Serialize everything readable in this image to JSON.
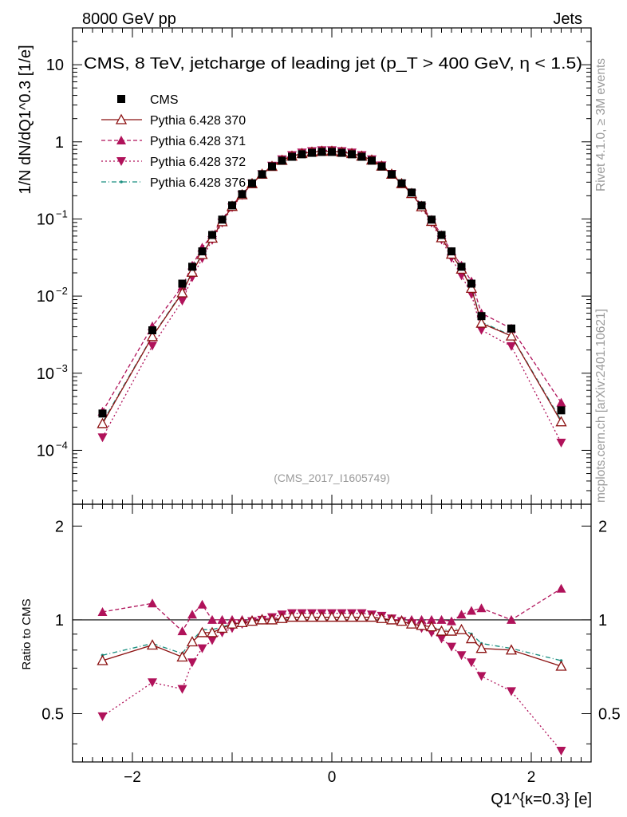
{
  "header": {
    "left": "8000 GeV pp",
    "right": "Jets"
  },
  "side_labels": {
    "rivet": "Rivet 4.1.0, ≥ 3M events",
    "mcplots": "mcplots.cern.ch [arXiv:2401.10621]"
  },
  "analysis_id": "(CMS_2017_I1605749)",
  "colors": {
    "data": "#000000",
    "p370": "#8b1010",
    "p371": "#b0125a",
    "p372": "#b0125a",
    "p376": "#1a8f80"
  },
  "chart_data": {
    "type": "line",
    "title": "CMS, 8 TeV, jetcharge of leading jet (p_T > 400 GeV, η < 1.5)",
    "xlabel": "Q1^{κ=0.3} [e]",
    "ylabel": "1/N dN/dQ1^0.3 [1/e]",
    "ratio_ylabel": "Ratio to CMS",
    "xlim": [
      -2.6,
      2.6
    ],
    "ylim": [
      2e-05,
      30
    ],
    "yscale": "log",
    "ratio_ylim": [
      0.35,
      2.35
    ],
    "x_ticks": [
      "−2",
      "0",
      "2"
    ],
    "y_ticks": [
      "10^-4",
      "10^-3",
      "10^-2",
      "10^-1",
      "1",
      "10"
    ],
    "ratio_ticks": [
      "0.5",
      "1",
      "2"
    ],
    "x": [
      -2.3,
      -1.8,
      -1.5,
      -1.4,
      -1.3,
      -1.2,
      -1.1,
      -1.0,
      -0.9,
      -0.8,
      -0.7,
      -0.6,
      -0.5,
      -0.4,
      -0.3,
      -0.2,
      -0.1,
      0.0,
      0.1,
      0.2,
      0.3,
      0.4,
      0.5,
      0.6,
      0.7,
      0.8,
      0.9,
      1.0,
      1.1,
      1.2,
      1.3,
      1.4,
      1.5,
      1.8,
      2.3
    ],
    "cms": [
      0.0003,
      0.0036,
      0.0145,
      0.024,
      0.038,
      0.062,
      0.098,
      0.15,
      0.21,
      0.29,
      0.38,
      0.48,
      0.57,
      0.64,
      0.69,
      0.72,
      0.74,
      0.74,
      0.72,
      0.69,
      0.64,
      0.57,
      0.48,
      0.38,
      0.29,
      0.22,
      0.15,
      0.098,
      0.062,
      0.038,
      0.024,
      0.0145,
      0.0055,
      0.0038,
      0.00033
    ],
    "series": [
      {
        "name": "CMS",
        "ratio": [
          1,
          1,
          1,
          1,
          1,
          1,
          1,
          1,
          1,
          1,
          1,
          1,
          1,
          1,
          1,
          1,
          1,
          1,
          1,
          1,
          1,
          1,
          1,
          1,
          1,
          1,
          1,
          1,
          1,
          1,
          1,
          1,
          1,
          1,
          1
        ]
      },
      {
        "name": "Pythia 6.428 370",
        "ratio": [
          0.74,
          0.83,
          0.76,
          0.85,
          0.91,
          0.91,
          0.94,
          0.97,
          0.98,
          0.99,
          1.0,
          1.0,
          1.01,
          1.02,
          1.02,
          1.02,
          1.02,
          1.02,
          1.02,
          1.02,
          1.02,
          1.02,
          1.01,
          1.0,
          0.99,
          0.97,
          0.96,
          0.95,
          0.92,
          0.92,
          0.93,
          0.87,
          0.81,
          0.8,
          0.71
        ]
      },
      {
        "name": "Pythia 6.428 371",
        "ratio": [
          1.06,
          1.13,
          0.92,
          1.04,
          1.12,
          1.0,
          1.0,
          1.0,
          1.0,
          1.0,
          1.01,
          1.01,
          1.02,
          1.02,
          1.02,
          1.02,
          1.02,
          1.02,
          1.02,
          1.02,
          1.02,
          1.02,
          1.01,
          1.0,
          1.0,
          1.0,
          1.0,
          1.0,
          1.0,
          0.99,
          1.04,
          1.07,
          1.09,
          1.0,
          1.26
        ]
      },
      {
        "name": "Pythia 6.428 372",
        "ratio": [
          0.49,
          0.63,
          0.6,
          0.73,
          0.81,
          0.86,
          0.91,
          0.94,
          0.97,
          0.99,
          1.0,
          1.02,
          1.04,
          1.05,
          1.05,
          1.05,
          1.05,
          1.05,
          1.05,
          1.05,
          1.05,
          1.04,
          1.03,
          1.01,
          0.99,
          0.97,
          0.94,
          0.91,
          0.87,
          0.82,
          0.77,
          0.73,
          0.66,
          0.59,
          0.38
        ]
      },
      {
        "name": "Pythia 6.428 376",
        "ratio": [
          0.77,
          0.84,
          0.78,
          0.86,
          0.93,
          0.93,
          0.95,
          0.97,
          0.98,
          0.99,
          1.0,
          1.0,
          1.01,
          1.02,
          1.02,
          1.02,
          1.02,
          1.02,
          1.02,
          1.02,
          1.02,
          1.02,
          1.01,
          1.0,
          0.99,
          0.97,
          0.96,
          0.95,
          0.93,
          0.93,
          0.94,
          0.9,
          0.84,
          0.81,
          0.74
        ]
      }
    ],
    "legend_position": "top-left"
  }
}
